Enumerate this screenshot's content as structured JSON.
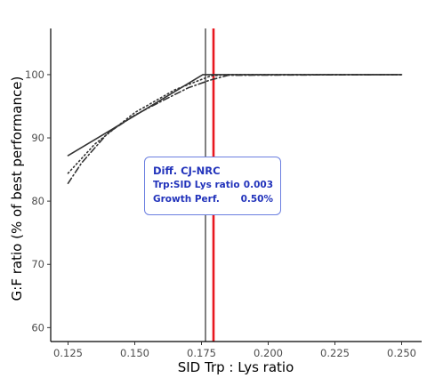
{
  "chart_data": {
    "type": "line",
    "xlabel": "SID Trp : Lys ratio",
    "ylabel": "G:F ratio (% of best performance)",
    "xlim": [
      0.1185,
      0.2575
    ],
    "ylim": [
      57.8,
      107.3
    ],
    "xticks": [
      "0.125",
      "0.150",
      "0.175",
      "0.200",
      "0.225",
      "0.250"
    ],
    "yticks": [
      "60",
      "70",
      "80",
      "90",
      "100"
    ],
    "grid": false,
    "series": [
      {
        "style": "solid",
        "color": "#333333",
        "x": [
          0.125,
          0.15,
          0.1755,
          0.185,
          0.25
        ],
        "y": [
          87.2,
          93.5,
          100.0,
          100.0,
          100.0
        ]
      },
      {
        "style": "dotted",
        "color": "#333333",
        "x": [
          0.125,
          0.135,
          0.15,
          0.165,
          0.1785,
          0.185,
          0.25
        ],
        "y": [
          84.4,
          89.0,
          94.0,
          97.6,
          99.8,
          100.0,
          100.0
        ]
      },
      {
        "style": "dashdot",
        "color": "#333333",
        "x": [
          0.125,
          0.13,
          0.14,
          0.15,
          0.16,
          0.17,
          0.178,
          0.185,
          0.25
        ],
        "y": [
          82.8,
          86.0,
          90.8,
          93.6,
          95.8,
          97.9,
          99.1,
          99.9,
          100.0
        ]
      }
    ],
    "reference_lines": [
      {
        "x": 0.1765,
        "color": "#000000"
      },
      {
        "x": 0.1795,
        "color": "#e8171f"
      }
    ],
    "annotation": {
      "title": "Diff. CJ-NRC",
      "rows": [
        {
          "label": "Trp:SID Lys ratio",
          "value": "0.003"
        },
        {
          "label": "Growth Perf.",
          "value": "0.50%"
        }
      ],
      "color": "#2233bb",
      "border_color": "#6b7fe0"
    }
  }
}
